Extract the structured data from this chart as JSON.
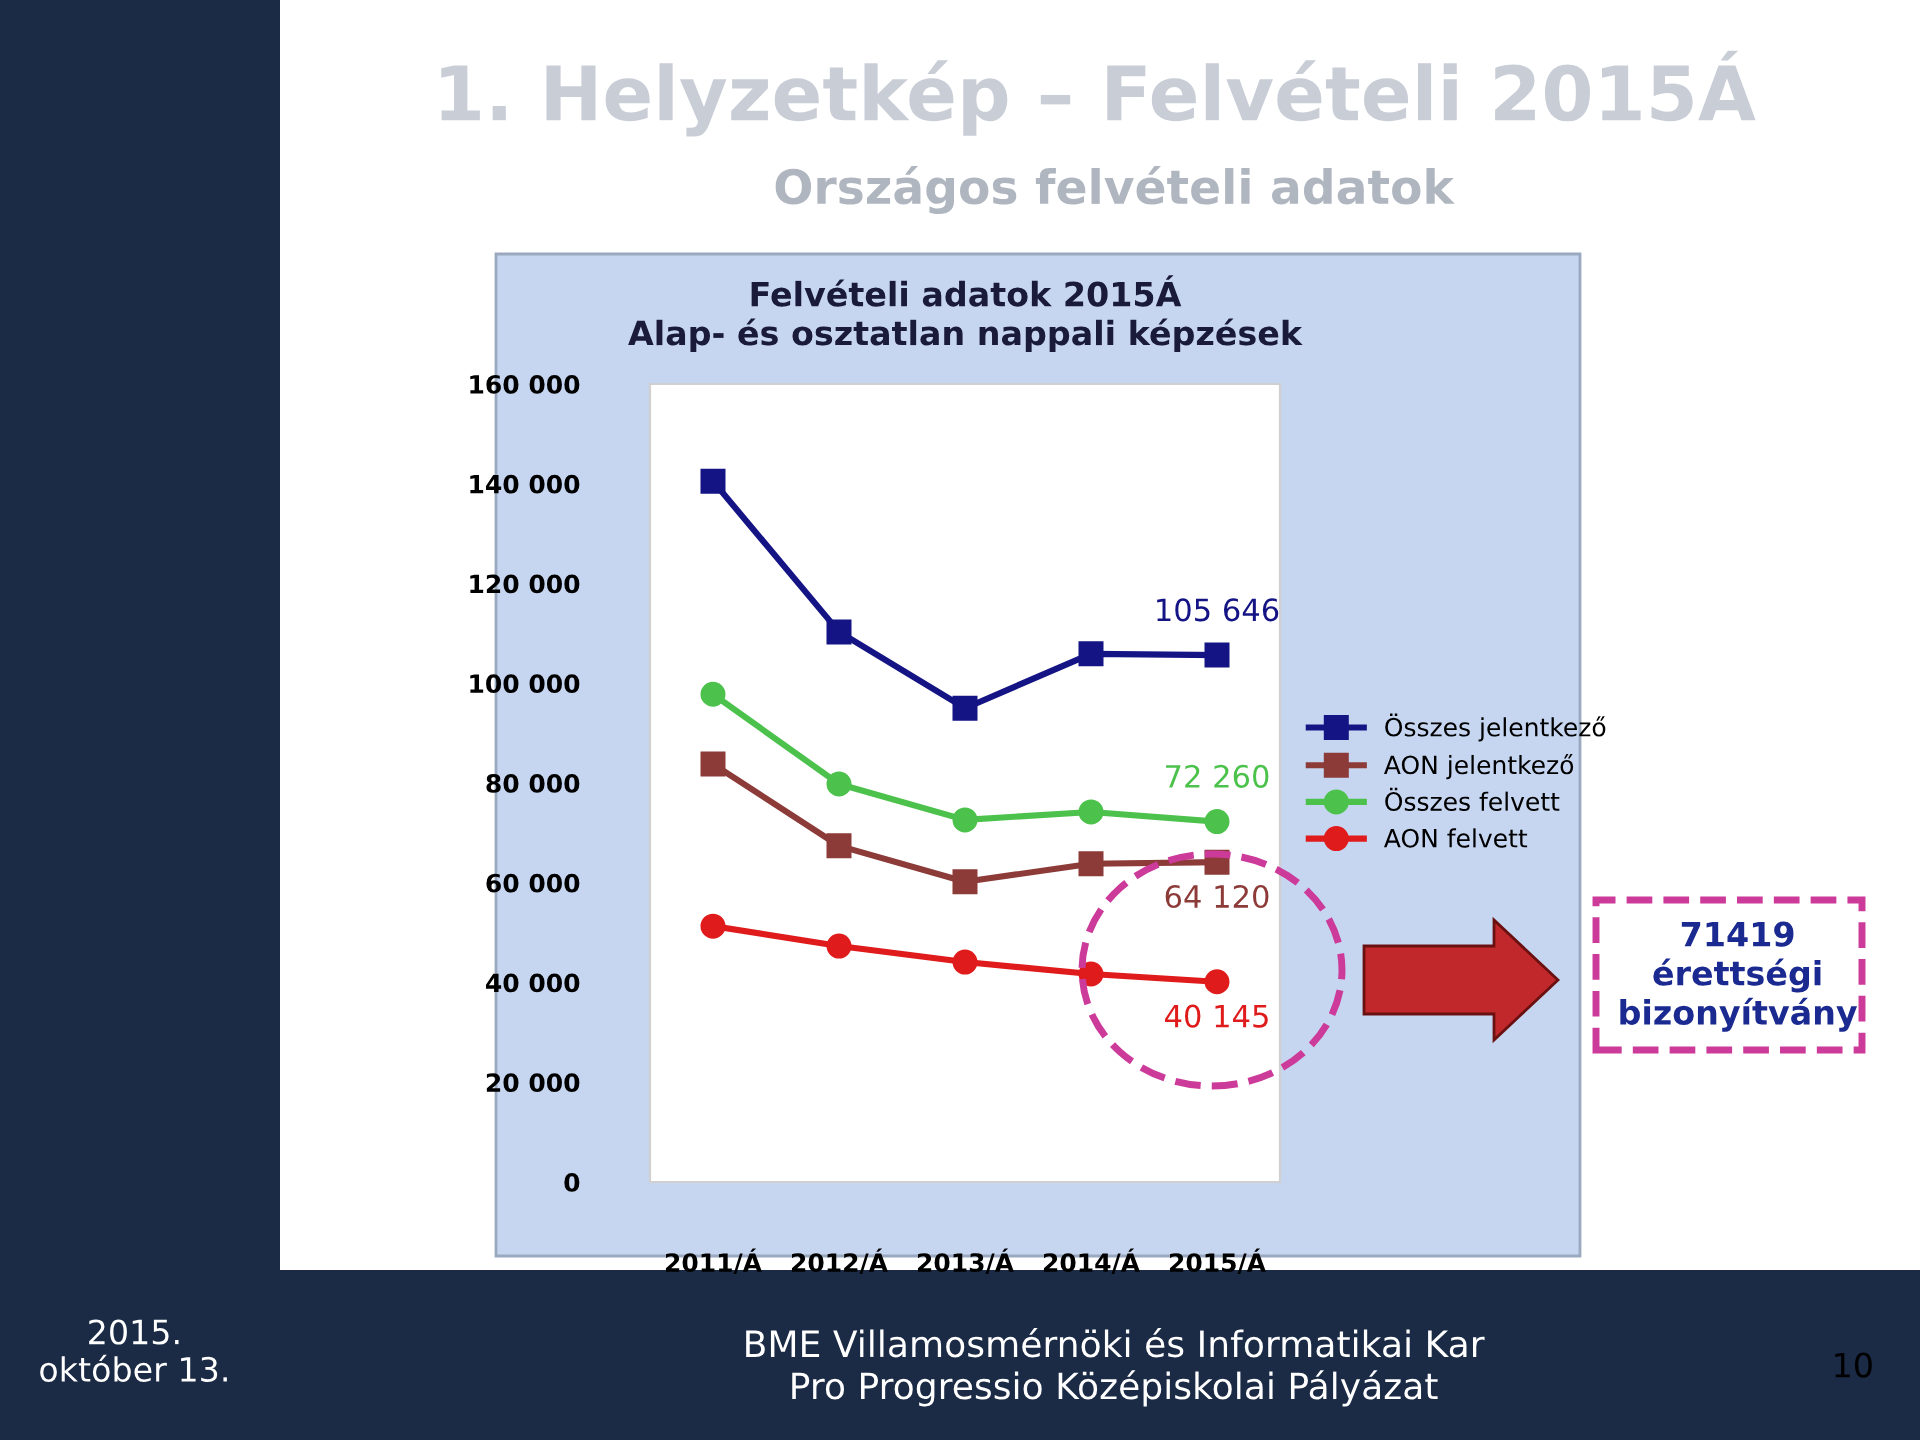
{
  "chart_data": {
    "type": "line",
    "title": "Felvételi adatok 2015Á\nAlap- és osztatlan nappali képzések",
    "categories": [
      "2011/Á",
      "2012/Á",
      "2013/Á",
      "2014/Á",
      "2015/Á"
    ],
    "series": [
      {
        "name": "Összes jelentkező",
        "color": "#141485",
        "marker": "square",
        "values": [
          140500,
          110300,
          95000,
          105900,
          105646
        ],
        "value_labels": [
          null,
          null,
          null,
          null,
          "105 646"
        ]
      },
      {
        "name": "AON jelentkező",
        "color": "#8c3b38",
        "marker": "square",
        "values": [
          83800,
          67400,
          60200,
          63800,
          64120
        ],
        "value_labels": [
          null,
          null,
          null,
          null,
          "64 120"
        ]
      },
      {
        "name": "Összes felvett",
        "color": "#4cc24c",
        "marker": "circle",
        "values": [
          97800,
          79800,
          72600,
          74200,
          72260
        ],
        "value_labels": [
          null,
          null,
          null,
          null,
          "72 260"
        ]
      },
      {
        "name": "AON felvett",
        "color": "#e01b1b",
        "marker": "circle",
        "values": [
          51300,
          47300,
          44100,
          41700,
          40145
        ],
        "value_labels": [
          null,
          null,
          null,
          null,
          "40 145"
        ]
      }
    ],
    "ylim": [
      0,
      160000
    ],
    "yticks": [
      0,
      {
        "value": 20000,
        "label": "20 000"
      },
      {
        "value": 40000,
        "label": "40 000"
      },
      {
        "value": 60000,
        "label": "60 000"
      },
      {
        "value": 80000,
        "label": "80 000"
      },
      {
        "value": 100000,
        "label": "100 000"
      },
      {
        "value": 120000,
        "label": "120 000"
      },
      {
        "value": 140000,
        "label": "140 000"
      },
      {
        "value": 160000,
        "label": "160 000"
      }
    ],
    "grid": false,
    "legend": "right",
    "line_style": "solid",
    "annotations": [
      "1. Helyzetkép – Felvételi 2015Á",
      "Országos felvételi adatok",
      "71419\nérettségi\nbizonyítvány",
      "2015.\noktóber 13.",
      "BME Villamosmérnöki és Informatikai Kar\nPro Progressio Középiskolai Pályázat",
      "10"
    ]
  }
}
